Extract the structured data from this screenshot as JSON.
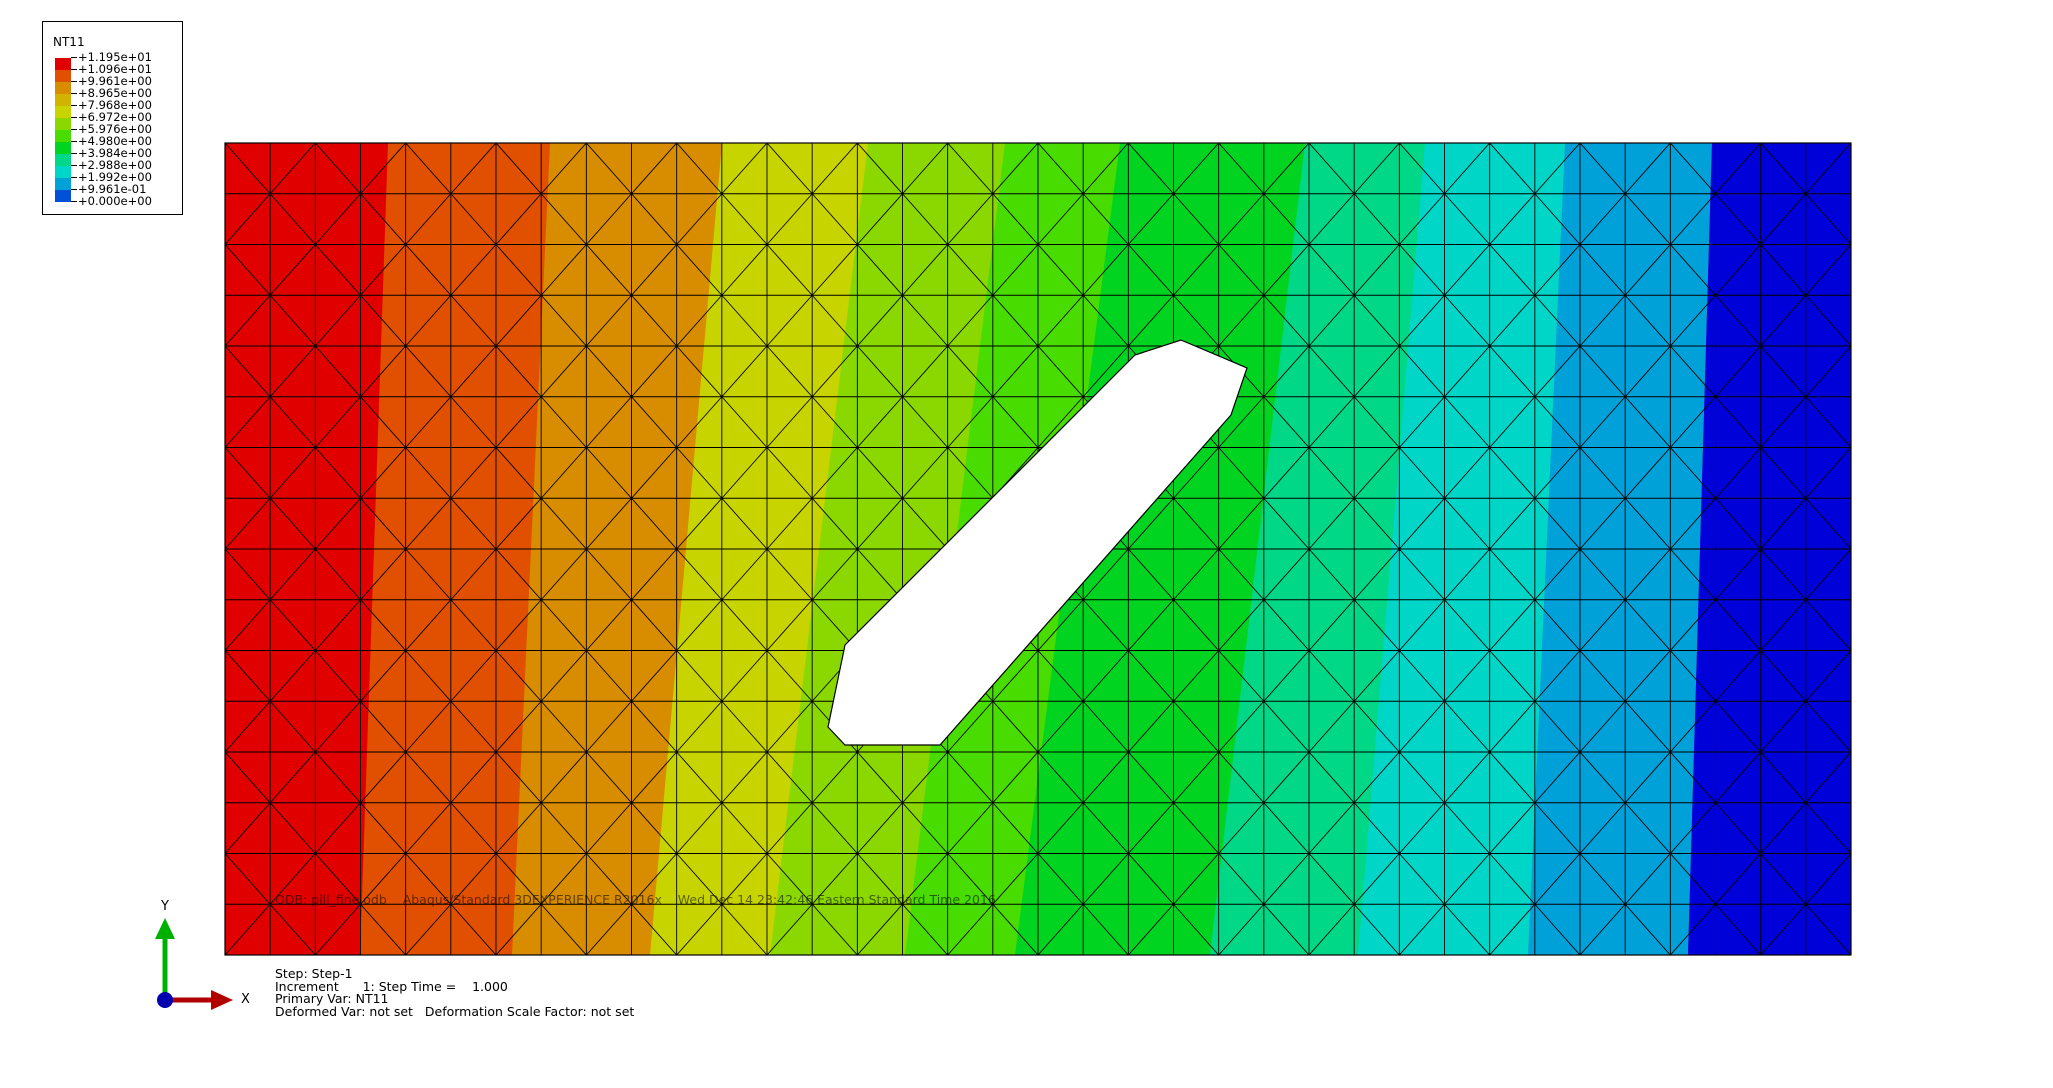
{
  "legend": {
    "title": "NT11",
    "entries": [
      {
        "label": "+1.195e+01",
        "color": "#e00000"
      },
      {
        "label": "+1.096e+01",
        "color": "#e05000"
      },
      {
        "label": "+9.961e+00",
        "color": "#d88c00"
      },
      {
        "label": "+8.965e+00",
        "color": "#d2b400"
      },
      {
        "label": "+7.968e+00",
        "color": "#c8d400"
      },
      {
        "label": "+6.972e+00",
        "color": "#8ad800"
      },
      {
        "label": "+5.976e+00",
        "color": "#48dc00"
      },
      {
        "label": "+4.980e+00",
        "color": "#00d420"
      },
      {
        "label": "+3.984e+00",
        "color": "#00d888"
      },
      {
        "label": "+2.988e+00",
        "color": "#00d6c8"
      },
      {
        "label": "+1.992e+00",
        "color": "#00a0d8"
      },
      {
        "label": "+9.961e-01",
        "color": "#0050d8"
      },
      {
        "label": "+0.000e+00",
        "color": "#0000d8"
      }
    ],
    "bottom_color": "#0000d8"
  },
  "odb_line": "ODB: pill_fine.odb    Abaqus/Standard 3DEXPERIENCE R2016x    Wed Dec 14 23:42:46 Eastern Standard Time 2016",
  "step_info": {
    "step": "Step: Step-1",
    "increment": "Increment      1: Step Time =    1.000",
    "primary_var": "Primary Var: NT11",
    "deformed_var": "Deformed Var: not set   Deformation Scale Factor: not set"
  },
  "triad": {
    "x_label": "X",
    "y_label": "Y",
    "x_color": "#b00000",
    "y_color": "#00b000",
    "origin_color": "#0000b0"
  },
  "contour_bands": [
    {
      "color": "#e00000"
    },
    {
      "color": "#e05000"
    },
    {
      "color": "#d88c00"
    },
    {
      "color": "#c8d400"
    },
    {
      "color": "#8ad800"
    },
    {
      "color": "#48dc00"
    },
    {
      "color": "#00d420"
    },
    {
      "color": "#00d888"
    },
    {
      "color": "#00d6c8"
    },
    {
      "color": "#00a0d8"
    },
    {
      "color": "#0050d8"
    },
    {
      "color": "#0000d8"
    }
  ]
}
